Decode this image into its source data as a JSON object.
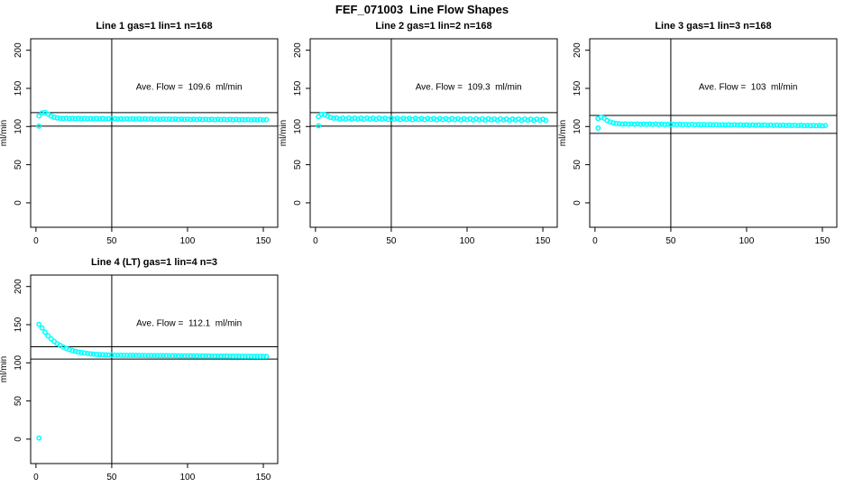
{
  "figure": {
    "title": "FEF_071003  Line Flow Shapes",
    "background_color": "#ffffff",
    "point_color": "#00ffff",
    "line_color": "#000000"
  },
  "chart_data": {
    "type": "scatter",
    "shared": {
      "ylabel": "ml/min",
      "xticks": [
        0,
        50,
        100,
        150
      ],
      "yticks": [
        0,
        50,
        100,
        150,
        200
      ],
      "xlim": [
        -3.5,
        159.5
      ],
      "ylim": [
        -32,
        215
      ],
      "vline_x": 50,
      "grid": "off",
      "marker": "open-circle",
      "x": [
        2,
        4,
        6,
        8,
        10,
        12,
        14,
        16,
        18,
        20,
        22,
        24,
        26,
        28,
        30,
        32,
        34,
        36,
        38,
        40,
        42,
        44,
        46,
        48,
        50,
        52,
        54,
        56,
        58,
        60,
        62,
        64,
        66,
        68,
        70,
        72,
        74,
        76,
        78,
        80,
        82,
        84,
        86,
        88,
        90,
        92,
        94,
        96,
        98,
        100,
        102,
        104,
        106,
        108,
        110,
        112,
        114,
        116,
        118,
        120,
        122,
        124,
        126,
        128,
        130,
        132,
        134,
        136,
        138,
        140,
        142,
        144,
        146,
        148,
        150,
        152
      ]
    },
    "subplots": [
      {
        "title": "Line 1 gas=1 lin=1 n=168",
        "annotation": "Ave. Flow =  109.6  ml/min",
        "annotation_xy": [
          101,
          152
        ],
        "hlines": [
          118.3,
          100.5
        ],
        "y": [
          114.0,
          117.9,
          118.4,
          116.2,
          113.8,
          112.2,
          111.3,
          110.8,
          110.5,
          110.9,
          110.4,
          110.8,
          110.3,
          110.7,
          110.2,
          110.6,
          110.1,
          110.5,
          110.0,
          110.4,
          110.0,
          110.4,
          109.9,
          110.3,
          109.9,
          110.3,
          109.8,
          110.2,
          109.8,
          110.2,
          109.7,
          110.1,
          109.7,
          110.1,
          109.6,
          110.0,
          109.6,
          110.0,
          109.5,
          109.9,
          109.5,
          109.9,
          109.4,
          109.8,
          109.4,
          109.8,
          109.3,
          109.7,
          109.3,
          109.7,
          109.2,
          109.6,
          109.2,
          109.6,
          109.1,
          109.5,
          109.1,
          109.5,
          109.0,
          109.4,
          109.0,
          109.4,
          108.9,
          109.3,
          108.9,
          109.3,
          108.8,
          109.2,
          108.8,
          109.2,
          108.7,
          109.1,
          108.7,
          109.1,
          108.6,
          109.0
        ],
        "extra_points": [
          [
            2,
            100.5
          ]
        ]
      },
      {
        "title": "Line 2 gas=1 lin=2 n=168",
        "annotation": "Ave. Flow =  109.3  ml/min",
        "annotation_xy": [
          101,
          152
        ],
        "hlines": [
          118.3,
          100.5
        ],
        "y": [
          113.0,
          116.0,
          115.6,
          113.6,
          112.0,
          110.9,
          111.3,
          109.8,
          111.0,
          109.6,
          111.2,
          109.9,
          111.1,
          109.7,
          111.0,
          109.5,
          111.1,
          109.8,
          110.9,
          109.4,
          111.0,
          109.7,
          110.8,
          109.3,
          110.9,
          109.6,
          110.7,
          109.2,
          110.8,
          109.5,
          110.6,
          109.1,
          110.7,
          109.4,
          110.5,
          109.0,
          110.6,
          109.3,
          110.4,
          108.9,
          110.5,
          109.2,
          110.3,
          108.8,
          110.4,
          109.1,
          110.2,
          108.7,
          110.3,
          109.0,
          110.1,
          108.6,
          110.2,
          108.9,
          110.0,
          108.5,
          110.1,
          108.8,
          109.9,
          108.4,
          110.0,
          108.7,
          109.8,
          108.3,
          109.9,
          108.6,
          109.7,
          108.2,
          109.8,
          108.5,
          109.6,
          108.1,
          109.7,
          108.4,
          109.5,
          108.0
        ],
        "extra_points": [
          [
            2,
            101.0
          ]
        ]
      },
      {
        "title": "Line 3 gas=1 lin=3 n=168",
        "annotation": "Ave. Flow =  103  ml/min",
        "annotation_xy": [
          101,
          152
        ],
        "hlines": [
          114.5,
          91.0
        ],
        "y": [
          110.5,
          112.2,
          111.0,
          108.0,
          106.0,
          104.8,
          104.0,
          103.6,
          103.2,
          103.5,
          103.1,
          103.4,
          103.0,
          103.4,
          102.9,
          103.3,
          102.9,
          103.2,
          102.8,
          103.2,
          102.7,
          103.1,
          102.7,
          103.0,
          102.6,
          103.0,
          102.5,
          102.9,
          102.5,
          102.8,
          102.4,
          102.8,
          102.3,
          102.7,
          102.3,
          102.6,
          102.2,
          102.6,
          102.1,
          102.5,
          102.1,
          102.4,
          102.0,
          102.4,
          101.9,
          102.3,
          101.9,
          102.2,
          101.8,
          102.2,
          101.7,
          102.1,
          101.7,
          102.0,
          101.6,
          102.0,
          101.5,
          101.9,
          101.5,
          101.8,
          101.4,
          101.8,
          101.3,
          101.7,
          101.3,
          101.6,
          101.2,
          101.6,
          101.1,
          101.5,
          101.1,
          101.4,
          101.0,
          101.4,
          100.9,
          101.3
        ],
        "extra_points": [
          [
            2,
            98.0
          ]
        ]
      },
      {
        "title": "Line 4 (LT) gas=1 lin=4 n=3",
        "annotation": "Ave. Flow =  112.1  ml/min",
        "annotation_xy": [
          101,
          152
        ],
        "hlines": [
          121.0,
          105.0
        ],
        "y": [
          150.5,
          145.7,
          140.1,
          135.4,
          131.4,
          128.0,
          125.1,
          122.7,
          120.6,
          118.9,
          117.4,
          116.2,
          115.1,
          114.2,
          113.5,
          112.8,
          112.3,
          111.8,
          111.4,
          111.1,
          110.8,
          110.6,
          110.4,
          110.2,
          110.1,
          110.0,
          109.9,
          109.9,
          109.8,
          109.8,
          109.7,
          109.7,
          109.7,
          109.6,
          109.6,
          109.6,
          109.5,
          109.5,
          109.5,
          109.4,
          109.4,
          109.4,
          109.4,
          109.3,
          109.3,
          109.3,
          109.2,
          109.2,
          109.2,
          109.2,
          109.1,
          109.1,
          109.1,
          109.0,
          109.0,
          109.0,
          109.0,
          108.9,
          108.9,
          108.9,
          108.8,
          108.8,
          108.8,
          108.8,
          108.7,
          108.7,
          108.7,
          108.6,
          108.6,
          108.6,
          108.6,
          108.5,
          108.5,
          108.5,
          108.4,
          108.4
        ],
        "extra_points": [
          [
            2,
            1.5
          ]
        ]
      }
    ]
  }
}
